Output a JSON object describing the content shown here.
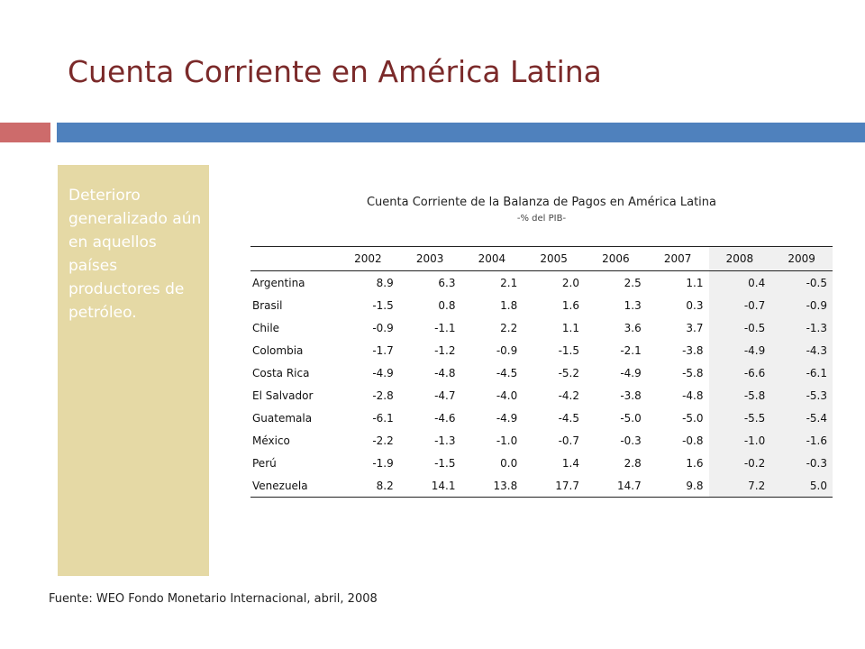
{
  "slide": {
    "title": "Cuenta Corriente en América Latina",
    "side_note": "Deterioro generalizado aún en aquellos países productores de petróleo.",
    "source": "Fuente: WEO Fondo Monetario Internacional, abril, 2008",
    "colors": {
      "title": "#7b2a2a",
      "bar_red": "#cd6b6b",
      "bar_blue": "#4f81bd",
      "side_box": "#e5d9a5"
    }
  },
  "table": {
    "title": "Cuenta Corriente de la Balanza de Pagos en América Latina",
    "subtitle": "-% del PIB-",
    "years": [
      "2002",
      "2003",
      "2004",
      "2005",
      "2006",
      "2007",
      "2008",
      "2009"
    ],
    "rows": [
      {
        "country": "Argentina",
        "values": [
          "8.9",
          "6.3",
          "2.1",
          "2.0",
          "2.5",
          "1.1",
          "0.4",
          "-0.5"
        ]
      },
      {
        "country": "Brasil",
        "values": [
          "-1.5",
          "0.8",
          "1.8",
          "1.6",
          "1.3",
          "0.3",
          "-0.7",
          "-0.9"
        ]
      },
      {
        "country": "Chile",
        "values": [
          "-0.9",
          "-1.1",
          "2.2",
          "1.1",
          "3.6",
          "3.7",
          "-0.5",
          "-1.3"
        ]
      },
      {
        "country": "Colombia",
        "values": [
          "-1.7",
          "-1.2",
          "-0.9",
          "-1.5",
          "-2.1",
          "-3.8",
          "-4.9",
          "-4.3"
        ]
      },
      {
        "country": "Costa Rica",
        "values": [
          "-4.9",
          "-4.8",
          "-4.5",
          "-5.2",
          "-4.9",
          "-5.8",
          "-6.6",
          "-6.1"
        ]
      },
      {
        "country": "El Salvador",
        "values": [
          "-2.8",
          "-4.7",
          "-4.0",
          "-4.2",
          "-3.8",
          "-4.8",
          "-5.8",
          "-5.3"
        ]
      },
      {
        "country": "Guatemala",
        "values": [
          "-6.1",
          "-4.6",
          "-4.9",
          "-4.5",
          "-5.0",
          "-5.0",
          "-5.5",
          "-5.4"
        ]
      },
      {
        "country": "México",
        "values": [
          "-2.2",
          "-1.3",
          "-1.0",
          "-0.7",
          "-0.3",
          "-0.8",
          "-1.0",
          "-1.6"
        ]
      },
      {
        "country": "Perú",
        "values": [
          "-1.9",
          "-1.5",
          "0.0",
          "1.4",
          "2.8",
          "1.6",
          "-0.2",
          "-0.3"
        ]
      },
      {
        "country": "Venezuela",
        "values": [
          "8.2",
          "14.1",
          "13.8",
          "17.7",
          "14.7",
          "9.8",
          "7.2",
          "5.0"
        ]
      }
    ]
  }
}
